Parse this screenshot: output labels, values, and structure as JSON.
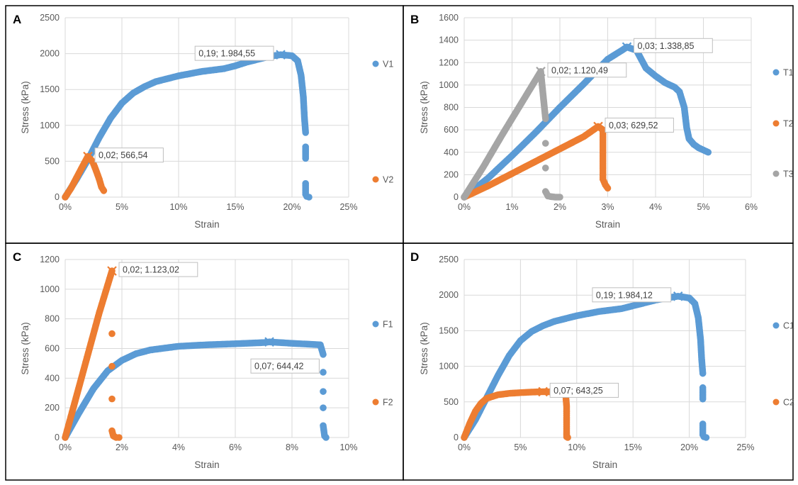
{
  "colors": {
    "blue": "#5b9bd5",
    "orange": "#ed7d31",
    "gray": "#a5a5a5",
    "grid": "#d9d9d9",
    "text": "#595959",
    "border": "#000000"
  },
  "chart_data": [
    {
      "panel": "A",
      "type": "scatter",
      "xlabel": "Strain",
      "ylabel": "Stress (kPa)",
      "xlim": [
        0,
        0.25
      ],
      "ylim": [
        0,
        2500
      ],
      "x_ticks": [
        0,
        0.05,
        0.1,
        0.15,
        0.2,
        0.25
      ],
      "x_tick_labels": [
        "0%",
        "5%",
        "10%",
        "15%",
        "20%",
        "25%"
      ],
      "y_ticks": [
        0,
        500,
        1000,
        1500,
        2000,
        2500
      ],
      "y_tick_labels": [
        "0",
        "500",
        "1000",
        "1500",
        "2000",
        "2500"
      ],
      "legend_position": "right",
      "series": [
        {
          "name": "V1",
          "color": "blue",
          "points": [
            [
              0,
              0
            ],
            [
              0.01,
              250
            ],
            [
              0.02,
              520
            ],
            [
              0.03,
              830
            ],
            [
              0.04,
              1100
            ],
            [
              0.05,
              1310
            ],
            [
              0.06,
              1450
            ],
            [
              0.07,
              1540
            ],
            [
              0.08,
              1610
            ],
            [
              0.09,
              1650
            ],
            [
              0.1,
              1690
            ],
            [
              0.11,
              1720
            ],
            [
              0.12,
              1750
            ],
            [
              0.13,
              1770
            ],
            [
              0.14,
              1790
            ],
            [
              0.15,
              1830
            ],
            [
              0.16,
              1880
            ],
            [
              0.17,
              1920
            ],
            [
              0.18,
              1960
            ],
            [
              0.19,
              1984.55
            ],
            [
              0.2,
              1970
            ],
            [
              0.205,
              1900
            ],
            [
              0.208,
              1700
            ],
            [
              0.21,
              1400
            ],
            [
              0.211,
              1100
            ],
            [
              0.212,
              900
            ],
            [
              0.212,
              700
            ],
            [
              0.212,
              540
            ],
            [
              0.212,
              190
            ],
            [
              0.212,
              40
            ],
            [
              0.213,
              10
            ],
            [
              0.215,
              0
            ]
          ],
          "peak": {
            "x": 0.19,
            "y": 1984.55,
            "label": "0,19; 1.984,55"
          }
        },
        {
          "name": "V2",
          "color": "orange",
          "points": [
            [
              0,
              0
            ],
            [
              0.005,
              120
            ],
            [
              0.01,
              270
            ],
            [
              0.015,
              420
            ],
            [
              0.02,
              566.54
            ],
            [
              0.024,
              500
            ],
            [
              0.027,
              380
            ],
            [
              0.03,
              250
            ],
            [
              0.032,
              140
            ],
            [
              0.034,
              90
            ]
          ],
          "peak": {
            "x": 0.02,
            "y": 566.54,
            "label": "0,02; 566,54"
          }
        }
      ]
    },
    {
      "panel": "B",
      "type": "scatter",
      "xlabel": "Strain",
      "ylabel": "Stress (kPa)",
      "xlim": [
        0,
        0.06
      ],
      "ylim": [
        0,
        1600
      ],
      "x_ticks": [
        0,
        0.01,
        0.02,
        0.03,
        0.04,
        0.05,
        0.06
      ],
      "x_tick_labels": [
        "0%",
        "1%",
        "2%",
        "3%",
        "4%",
        "5%",
        "6%"
      ],
      "y_ticks": [
        0,
        200,
        400,
        600,
        800,
        1000,
        1200,
        1400,
        1600
      ],
      "y_tick_labels": [
        "0",
        "200",
        "400",
        "600",
        "800",
        "1000",
        "1200",
        "1400",
        "1600"
      ],
      "legend_position": "right",
      "series": [
        {
          "name": "T1",
          "color": "blue",
          "points": [
            [
              0,
              0
            ],
            [
              0.005,
              170
            ],
            [
              0.01,
              370
            ],
            [
              0.015,
              580
            ],
            [
              0.02,
              800
            ],
            [
              0.025,
              1010
            ],
            [
              0.03,
              1230
            ],
            [
              0.033,
              1310
            ],
            [
              0.034,
              1338.85
            ],
            [
              0.036,
              1310
            ],
            [
              0.038,
              1150
            ],
            [
              0.04,
              1080
            ],
            [
              0.042,
              1020
            ],
            [
              0.044,
              980
            ],
            [
              0.045,
              940
            ],
            [
              0.046,
              800
            ],
            [
              0.0465,
              620
            ],
            [
              0.047,
              520
            ],
            [
              0.048,
              470
            ],
            [
              0.049,
              440
            ],
            [
              0.05,
              420
            ],
            [
              0.051,
              400
            ]
          ],
          "peak": {
            "x": 0.034,
            "y": 1338.85,
            "label": "0,03; 1.338,85"
          }
        },
        {
          "name": "T2",
          "color": "orange",
          "points": [
            [
              0,
              0
            ],
            [
              0.005,
              100
            ],
            [
              0.01,
              210
            ],
            [
              0.015,
              320
            ],
            [
              0.02,
              430
            ],
            [
              0.025,
              540
            ],
            [
              0.028,
              629.52
            ],
            [
              0.029,
              600
            ],
            [
              0.029,
              530
            ],
            [
              0.029,
              430
            ],
            [
              0.029,
              330
            ],
            [
              0.029,
              240
            ],
            [
              0.029,
              160
            ],
            [
              0.0295,
              110
            ],
            [
              0.03,
              80
            ]
          ],
          "peak": {
            "x": 0.028,
            "y": 629.52,
            "label": "0,03; 629,52"
          }
        },
        {
          "name": "T3",
          "color": "gray",
          "points": [
            [
              0,
              0
            ],
            [
              0.004,
              270
            ],
            [
              0.008,
              560
            ],
            [
              0.012,
              840
            ],
            [
              0.016,
              1120.49
            ],
            [
              0.017,
              700
            ],
            [
              0.017,
              480
            ],
            [
              0.017,
              260
            ],
            [
              0.017,
              50
            ],
            [
              0.0175,
              10
            ],
            [
              0.018,
              5
            ],
            [
              0.019,
              0
            ],
            [
              0.02,
              0
            ]
          ],
          "peak": {
            "x": 0.016,
            "y": 1120.49,
            "label": "0,02; 1.120,49"
          }
        }
      ]
    },
    {
      "panel": "C",
      "type": "scatter",
      "xlabel": "Strain",
      "ylabel": "Stress (kPa)",
      "xlim": [
        0,
        0.1
      ],
      "ylim": [
        0,
        1200
      ],
      "x_ticks": [
        0,
        0.02,
        0.04,
        0.06,
        0.08,
        0.1
      ],
      "x_tick_labels": [
        "0%",
        "2%",
        "4%",
        "6%",
        "8%",
        "10%"
      ],
      "y_ticks": [
        0,
        200,
        400,
        600,
        800,
        1000,
        1200
      ],
      "y_tick_labels": [
        "0",
        "200",
        "400",
        "600",
        "800",
        "1000",
        "1200"
      ],
      "legend_position": "right",
      "series": [
        {
          "name": "F1",
          "color": "blue",
          "points": [
            [
              0,
              0
            ],
            [
              0.005,
              170
            ],
            [
              0.01,
              330
            ],
            [
              0.015,
              450
            ],
            [
              0.02,
              520
            ],
            [
              0.025,
              565
            ],
            [
              0.03,
              590
            ],
            [
              0.04,
              615
            ],
            [
              0.05,
              625
            ],
            [
              0.06,
              632
            ],
            [
              0.07,
              640
            ],
            [
              0.072,
              644.42
            ],
            [
              0.08,
              635
            ],
            [
              0.09,
              625
            ],
            [
              0.091,
              560
            ],
            [
              0.091,
              440
            ],
            [
              0.091,
              310
            ],
            [
              0.091,
              200
            ],
            [
              0.091,
              80
            ],
            [
              0.0915,
              10
            ],
            [
              0.092,
              0
            ]
          ],
          "peak": {
            "x": 0.072,
            "y": 644.42,
            "label": "0,07; 644,42"
          }
        },
        {
          "name": "F2",
          "color": "orange",
          "points": [
            [
              0,
              0
            ],
            [
              0.004,
              280
            ],
            [
              0.008,
              560
            ],
            [
              0.012,
              840
            ],
            [
              0.0165,
              1123.02
            ],
            [
              0.0165,
              700
            ],
            [
              0.0165,
              480
            ],
            [
              0.0165,
              260
            ],
            [
              0.0165,
              45
            ],
            [
              0.017,
              10
            ],
            [
              0.018,
              0
            ],
            [
              0.019,
              0
            ]
          ],
          "peak": {
            "x": 0.0165,
            "y": 1123.02,
            "label": "0,02; 1.123,02"
          }
        }
      ]
    },
    {
      "panel": "D",
      "type": "scatter",
      "xlabel": "Strain",
      "ylabel": "Stress (kPa)",
      "xlim": [
        0,
        0.25
      ],
      "ylim": [
        0,
        2500
      ],
      "x_ticks": [
        0,
        0.05,
        0.1,
        0.15,
        0.2,
        0.25
      ],
      "x_tick_labels": [
        "0%",
        "5%",
        "10%",
        "15%",
        "20%",
        "25%"
      ],
      "y_ticks": [
        0,
        500,
        1000,
        1500,
        2000,
        2500
      ],
      "y_tick_labels": [
        "0",
        "500",
        "1000",
        "1500",
        "2000",
        "2500"
      ],
      "legend_position": "right",
      "series": [
        {
          "name": "C1",
          "color": "blue",
          "points": [
            [
              0,
              0
            ],
            [
              0.01,
              250
            ],
            [
              0.02,
              560
            ],
            [
              0.03,
              870
            ],
            [
              0.04,
              1150
            ],
            [
              0.05,
              1360
            ],
            [
              0.06,
              1490
            ],
            [
              0.07,
              1570
            ],
            [
              0.08,
              1630
            ],
            [
              0.09,
              1670
            ],
            [
              0.1,
              1710
            ],
            [
              0.11,
              1740
            ],
            [
              0.12,
              1770
            ],
            [
              0.13,
              1790
            ],
            [
              0.14,
              1810
            ],
            [
              0.15,
              1850
            ],
            [
              0.16,
              1890
            ],
            [
              0.17,
              1930
            ],
            [
              0.18,
              1960
            ],
            [
              0.19,
              1984.12
            ],
            [
              0.2,
              1960
            ],
            [
              0.205,
              1880
            ],
            [
              0.208,
              1680
            ],
            [
              0.21,
              1380
            ],
            [
              0.211,
              1100
            ],
            [
              0.212,
              900
            ],
            [
              0.212,
              700
            ],
            [
              0.212,
              540
            ],
            [
              0.212,
              190
            ],
            [
              0.212,
              40
            ],
            [
              0.213,
              10
            ],
            [
              0.215,
              0
            ]
          ],
          "peak": {
            "x": 0.19,
            "y": 1984.12,
            "label": "0,19; 1.984,12"
          }
        },
        {
          "name": "C2",
          "color": "orange",
          "points": [
            [
              0,
              0
            ],
            [
              0.005,
              200
            ],
            [
              0.01,
              370
            ],
            [
              0.015,
              480
            ],
            [
              0.02,
              550
            ],
            [
              0.03,
              600
            ],
            [
              0.04,
              620
            ],
            [
              0.05,
              630
            ],
            [
              0.06,
              638
            ],
            [
              0.07,
              643.25
            ],
            [
              0.08,
              640
            ],
            [
              0.09,
              630
            ],
            [
              0.091,
              440
            ],
            [
              0.091,
              310
            ],
            [
              0.091,
              180
            ],
            [
              0.091,
              80
            ],
            [
              0.091,
              10
            ],
            [
              0.092,
              0
            ]
          ],
          "peak": {
            "x": 0.07,
            "y": 643.25,
            "label": "0,07; 643,25"
          }
        }
      ]
    }
  ]
}
